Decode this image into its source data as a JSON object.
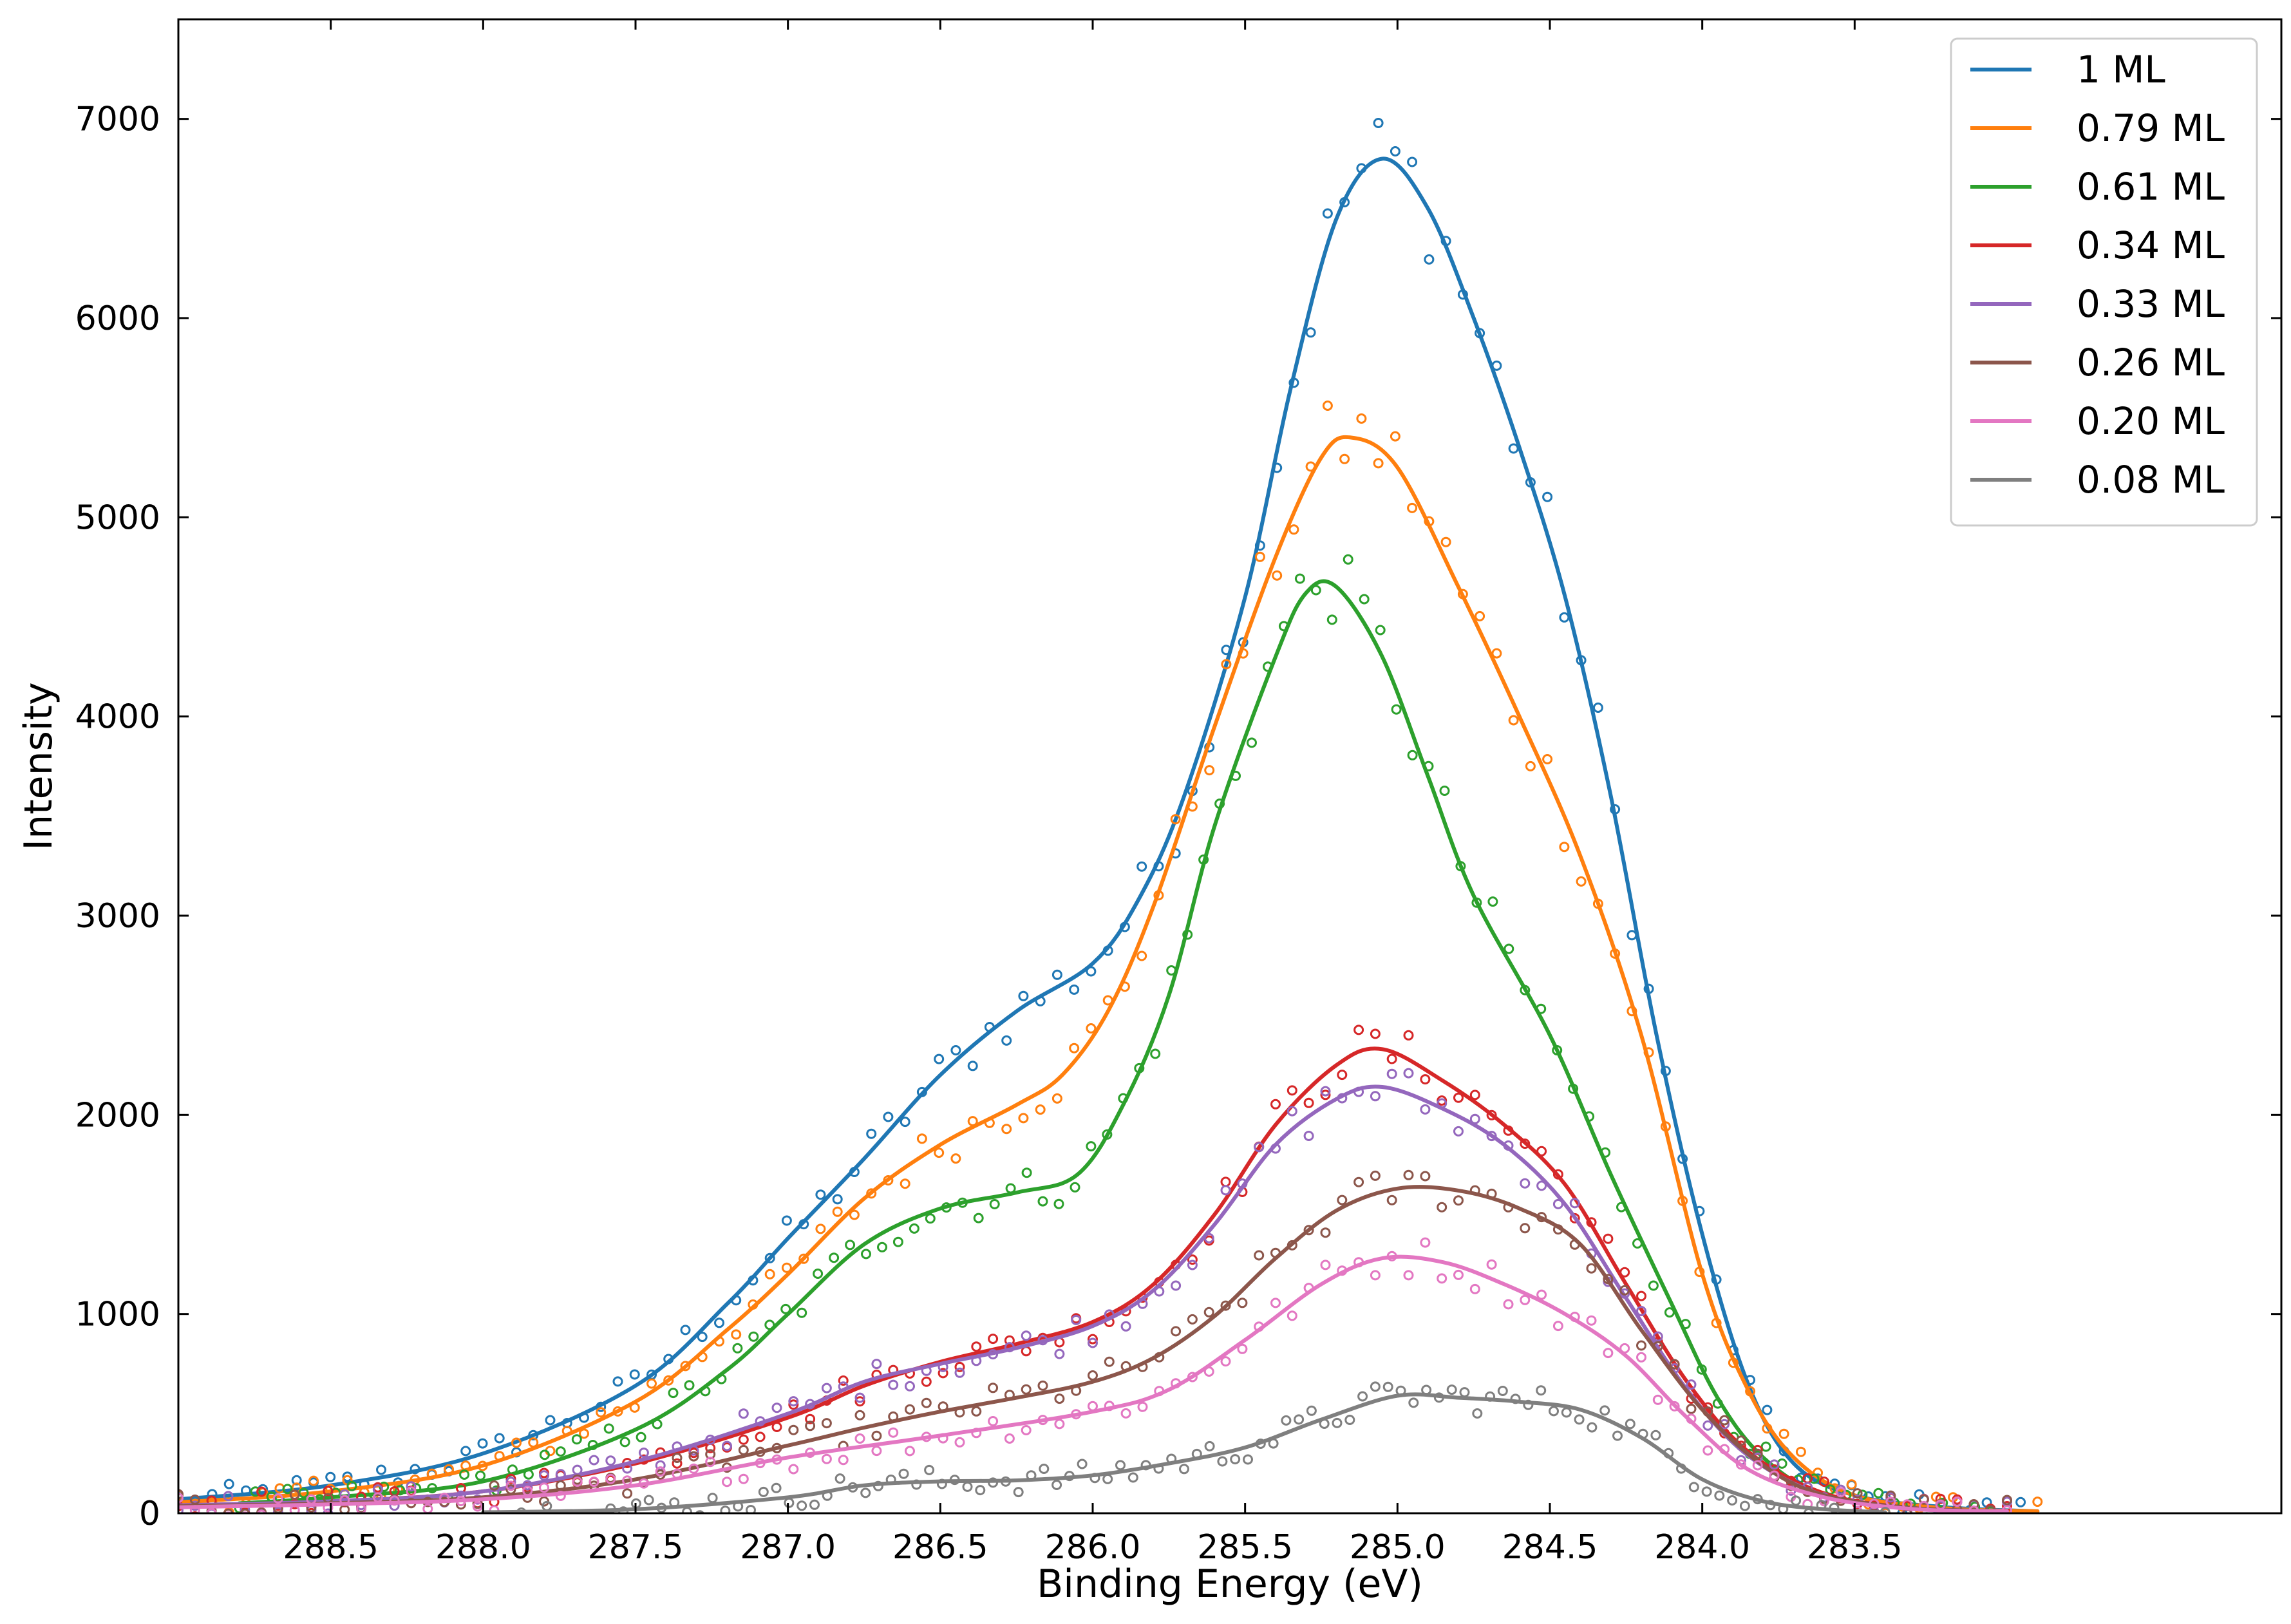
{
  "chart_data": {
    "type": "line",
    "title": "",
    "xlabel": "Binding Energy (eV)",
    "ylabel": "Intensity",
    "xlim": [
      289.0,
      282.1
    ],
    "x_inverted": true,
    "ylim": [
      0,
      7500
    ],
    "xticks": [
      288.5,
      288.0,
      287.5,
      287.0,
      286.5,
      286.0,
      285.5,
      285.0,
      284.5,
      284.0,
      283.5
    ],
    "xtick_labels": [
      "288.5",
      "288.0",
      "287.5",
      "287.0",
      "286.5",
      "286.0",
      "285.5",
      "285.0",
      "284.5",
      "284.0",
      "283.5"
    ],
    "yticks": [
      0,
      1000,
      2000,
      3000,
      4000,
      5000,
      6000,
      7000
    ],
    "ytick_labels": [
      "0",
      "1000",
      "2000",
      "3000",
      "4000",
      "5000",
      "6000",
      "7000"
    ],
    "grid": false,
    "legend_position": "top-right",
    "markers": "open circles (measured data) with smooth fitted lines",
    "series": [
      {
        "name": "1 ML",
        "color": "#1f77b4",
        "x": [
          289.0,
          288.5,
          288.0,
          287.5,
          287.2,
          287.0,
          286.75,
          286.5,
          286.25,
          286.0,
          285.85,
          285.7,
          285.5,
          285.35,
          285.2,
          285.05,
          284.9,
          284.75,
          284.6,
          284.45,
          284.3,
          284.15,
          284.0,
          283.85,
          283.7,
          283.5,
          283.2,
          282.9
        ],
        "y": [
          70,
          140,
          300,
          640,
          1050,
          1380,
          1780,
          2200,
          2520,
          2760,
          3080,
          3600,
          4600,
          5650,
          6500,
          6800,
          6550,
          6000,
          5350,
          4600,
          3600,
          2400,
          1400,
          650,
          250,
          90,
          30,
          10
        ]
      },
      {
        "name": "0.79 ML",
        "color": "#ff7f0e",
        "x": [
          289.0,
          288.5,
          288.0,
          287.5,
          287.2,
          287.0,
          286.75,
          286.5,
          286.25,
          286.1,
          285.95,
          285.8,
          285.6,
          285.4,
          285.25,
          285.15,
          285.0,
          284.8,
          284.6,
          284.4,
          284.2,
          284.0,
          283.85,
          283.7,
          283.5,
          283.2,
          282.9
        ],
        "y": [
          55,
          110,
          240,
          560,
          920,
          1200,
          1580,
          1850,
          2050,
          2200,
          2520,
          3050,
          3950,
          4800,
          5300,
          5400,
          5250,
          4650,
          4000,
          3300,
          2400,
          1200,
          620,
          280,
          90,
          25,
          10
        ]
      },
      {
        "name": "0.61 ML",
        "color": "#2ca02c",
        "x": [
          288.8,
          288.5,
          288.0,
          287.5,
          287.2,
          287.0,
          286.75,
          286.5,
          286.25,
          286.05,
          285.9,
          285.75,
          285.6,
          285.4,
          285.3,
          285.2,
          285.05,
          284.9,
          284.75,
          284.5,
          284.3,
          284.1,
          283.95,
          283.8,
          283.6,
          283.3,
          283.0
        ],
        "y": [
          50,
          80,
          160,
          420,
          720,
          1000,
          1350,
          1530,
          1610,
          1700,
          2050,
          2600,
          3450,
          4300,
          4620,
          4650,
          4300,
          3700,
          3100,
          2400,
          1700,
          1050,
          580,
          280,
          90,
          25,
          10
        ]
      },
      {
        "name": "0.34 ML",
        "color": "#d62728",
        "x": [
          289.0,
          288.5,
          288.0,
          287.5,
          287.0,
          286.75,
          286.5,
          286.25,
          286.0,
          285.8,
          285.6,
          285.4,
          285.2,
          285.05,
          284.85,
          284.65,
          284.45,
          284.25,
          284.05,
          283.85,
          283.6,
          283.3,
          283.0
        ],
        "y": [
          40,
          60,
          110,
          250,
          480,
          640,
          760,
          850,
          960,
          1150,
          1500,
          1950,
          2250,
          2330,
          2170,
          1950,
          1650,
          1150,
          660,
          310,
          100,
          25,
          10
        ]
      },
      {
        "name": "0.33 ML",
        "color": "#9467bd",
        "x": [
          289.0,
          288.5,
          288.0,
          287.5,
          287.0,
          286.75,
          286.5,
          286.25,
          286.0,
          285.8,
          285.6,
          285.4,
          285.2,
          285.05,
          284.85,
          284.65,
          284.45,
          284.25,
          284.05,
          283.85,
          283.6,
          283.3,
          283.0
        ],
        "y": [
          40,
          60,
          110,
          260,
          500,
          660,
          750,
          830,
          940,
          1120,
          1450,
          1850,
          2080,
          2140,
          2030,
          1850,
          1550,
          1080,
          620,
          290,
          90,
          25,
          10
        ]
      },
      {
        "name": "0.26 ML",
        "color": "#8c564b",
        "x": [
          289.0,
          288.5,
          288.0,
          287.5,
          287.0,
          286.75,
          286.5,
          286.25,
          286.0,
          285.8,
          285.6,
          285.4,
          285.2,
          285.0,
          284.8,
          284.6,
          284.4,
          284.2,
          284.0,
          283.8,
          283.6,
          283.3,
          283.0
        ],
        "y": [
          35,
          50,
          80,
          170,
          340,
          430,
          510,
          580,
          660,
          780,
          990,
          1280,
          1520,
          1630,
          1620,
          1530,
          1350,
          920,
          520,
          240,
          90,
          25,
          10
        ]
      },
      {
        "name": "0.20 ML",
        "color": "#e377c2",
        "x": [
          289.0,
          288.5,
          288.0,
          287.5,
          287.0,
          286.5,
          286.0,
          285.75,
          285.5,
          285.25,
          285.05,
          284.85,
          284.65,
          284.45,
          284.25,
          284.05,
          283.85,
          283.6,
          283.3,
          283.0
        ],
        "y": [
          30,
          45,
          70,
          140,
          280,
          390,
          510,
          620,
          870,
          1150,
          1280,
          1260,
          1150,
          1000,
          790,
          480,
          220,
          80,
          20,
          10
        ]
      },
      {
        "name": "0.08 ML",
        "color": "#7f7f7f",
        "x": [
          288.0,
          287.5,
          287.0,
          286.75,
          286.5,
          286.25,
          286.0,
          285.75,
          285.5,
          285.25,
          285.0,
          284.8,
          284.6,
          284.4,
          284.2,
          284.0,
          283.8,
          283.6,
          283.4
        ],
        "y": [
          5,
          20,
          80,
          140,
          160,
          165,
          190,
          250,
          330,
          470,
          590,
          580,
          560,
          520,
          380,
          170,
          60,
          20,
          5
        ]
      }
    ]
  }
}
